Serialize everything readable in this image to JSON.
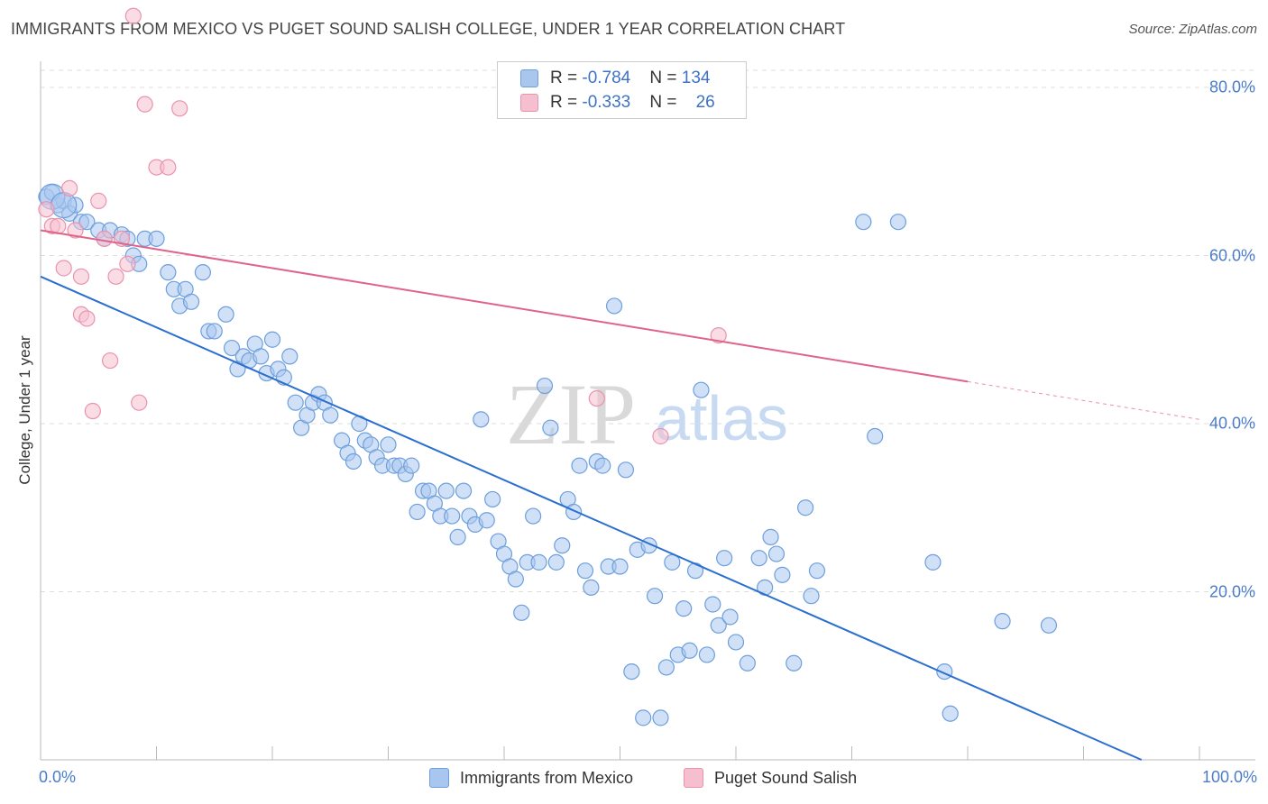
{
  "chart_data": {
    "type": "scatter",
    "title": "IMMIGRANTS FROM MEXICO VS PUGET SOUND SALISH COLLEGE, UNDER 1 YEAR CORRELATION CHART",
    "source": "Source: ZipAtlas.com",
    "xlabel": "",
    "ylabel": "College, Under 1 year",
    "xlim": [
      0,
      100
    ],
    "ylim": [
      0,
      80
    ],
    "x_tick_labels": [
      "0.0%",
      "100.0%"
    ],
    "y_tick_values": [
      20,
      40,
      60,
      80
    ],
    "y_tick_labels": [
      "20.0%",
      "40.0%",
      "60.0%",
      "80.0%"
    ],
    "watermark": {
      "part1": "ZIP",
      "part2": "atlas"
    },
    "stats": [
      {
        "r_label": "R = ",
        "r": "-0.784",
        "n_label": "N = ",
        "n": "134"
      },
      {
        "r_label": "R = ",
        "r": "-0.333",
        "n_label": "N = ",
        "n": "26"
      }
    ],
    "series": [
      {
        "name": "Immigrants from Mexico",
        "color": "#a9c6ef",
        "stroke": "#6d9fdc",
        "line_color": "#2a6fd0",
        "trend": {
          "x0": 0,
          "y0": 57.5,
          "x1": 95,
          "y1": 0,
          "dash_from": 95
        },
        "points": [
          [
            0.5,
            67
          ],
          [
            1,
            67.5
          ],
          [
            1.5,
            66
          ],
          [
            2,
            66.5
          ],
          [
            2.5,
            65
          ],
          [
            3,
            66
          ],
          [
            3.5,
            64
          ],
          [
            4,
            64
          ],
          [
            5,
            63
          ],
          [
            5.5,
            62
          ],
          [
            6,
            63
          ],
          [
            7,
            62.5
          ],
          [
            8,
            60
          ],
          [
            7.5,
            62
          ],
          [
            8.5,
            59
          ],
          [
            9,
            62
          ],
          [
            10,
            62
          ],
          [
            11,
            58
          ],
          [
            11.5,
            56
          ],
          [
            12,
            54
          ],
          [
            12.5,
            56
          ],
          [
            13,
            54.5
          ],
          [
            14,
            58
          ],
          [
            14.5,
            51
          ],
          [
            15,
            51
          ],
          [
            16,
            53
          ],
          [
            16.5,
            49
          ],
          [
            17,
            46.5
          ],
          [
            17.5,
            48
          ],
          [
            18,
            47.5
          ],
          [
            18.5,
            49.5
          ],
          [
            19,
            48
          ],
          [
            19.5,
            46
          ],
          [
            20,
            50
          ],
          [
            20.5,
            46.5
          ],
          [
            21,
            45.5
          ],
          [
            21.5,
            48
          ],
          [
            22,
            42.5
          ],
          [
            22.5,
            39.5
          ],
          [
            23,
            41
          ],
          [
            23.5,
            42.5
          ],
          [
            24,
            43.5
          ],
          [
            24.5,
            42.5
          ],
          [
            25,
            41
          ],
          [
            26,
            38
          ],
          [
            26.5,
            36.5
          ],
          [
            27,
            35.5
          ],
          [
            27.5,
            40
          ],
          [
            28,
            38
          ],
          [
            28.5,
            37.5
          ],
          [
            29,
            36
          ],
          [
            29.5,
            35
          ],
          [
            30,
            37.5
          ],
          [
            30.5,
            35
          ],
          [
            31,
            35
          ],
          [
            31.5,
            34
          ],
          [
            32,
            35
          ],
          [
            32.5,
            29.5
          ],
          [
            33,
            32
          ],
          [
            33.5,
            32
          ],
          [
            34,
            30.5
          ],
          [
            34.5,
            29
          ],
          [
            35,
            32
          ],
          [
            35.5,
            29
          ],
          [
            36,
            26.5
          ],
          [
            36.5,
            32
          ],
          [
            37,
            29
          ],
          [
            37.5,
            28
          ],
          [
            38,
            40.5
          ],
          [
            38.5,
            28.5
          ],
          [
            39,
            31
          ],
          [
            39.5,
            26
          ],
          [
            40,
            24.5
          ],
          [
            40.5,
            23
          ],
          [
            41,
            21.5
          ],
          [
            41.5,
            17.5
          ],
          [
            42,
            23.5
          ],
          [
            42.5,
            29
          ],
          [
            43,
            23.5
          ],
          [
            43.5,
            44.5
          ],
          [
            44,
            39.5
          ],
          [
            44.5,
            23.5
          ],
          [
            45,
            25.5
          ],
          [
            45.5,
            31
          ],
          [
            46,
            29.5
          ],
          [
            46.5,
            35
          ],
          [
            47,
            22.5
          ],
          [
            47.5,
            20.5
          ],
          [
            48,
            35.5
          ],
          [
            48.5,
            35
          ],
          [
            49,
            23
          ],
          [
            49.5,
            54
          ],
          [
            50,
            23
          ],
          [
            50.5,
            34.5
          ],
          [
            51,
            10.5
          ],
          [
            51.5,
            25
          ],
          [
            52,
            5
          ],
          [
            52.5,
            25.5
          ],
          [
            53,
            19.5
          ],
          [
            53.5,
            5
          ],
          [
            54,
            11
          ],
          [
            54.5,
            23.5
          ],
          [
            55,
            12.5
          ],
          [
            55.5,
            18
          ],
          [
            56,
            13
          ],
          [
            56.5,
            22.5
          ],
          [
            57,
            44
          ],
          [
            57.5,
            12.5
          ],
          [
            58,
            18.5
          ],
          [
            58.5,
            16
          ],
          [
            59,
            24
          ],
          [
            59.5,
            17
          ],
          [
            60,
            14
          ],
          [
            61,
            11.5
          ],
          [
            62,
            24
          ],
          [
            62.5,
            20.5
          ],
          [
            63,
            26.5
          ],
          [
            63.5,
            24.5
          ],
          [
            64,
            22
          ],
          [
            65,
            11.5
          ],
          [
            66,
            30
          ],
          [
            66.5,
            19.5
          ],
          [
            67,
            22.5
          ],
          [
            71,
            64
          ],
          [
            72,
            38.5
          ],
          [
            74,
            64
          ],
          [
            77,
            23.5
          ],
          [
            78,
            10.5
          ],
          [
            78.5,
            5.5
          ],
          [
            83,
            16.5
          ],
          [
            87,
            16
          ]
        ],
        "big_points": [
          [
            1,
            67
          ],
          [
            2,
            66
          ]
        ]
      },
      {
        "name": "Puget Sound Salish",
        "color": "#f6bfd0",
        "stroke": "#ea93ae",
        "line_color": "#e0638a",
        "trend": {
          "x0": 0,
          "y0": 63,
          "x1": 100,
          "y1": 40.5,
          "dash_from": 80
        },
        "points": [
          [
            0.5,
            65.5
          ],
          [
            1,
            63.5
          ],
          [
            1.5,
            63.5
          ],
          [
            2,
            58.5
          ],
          [
            2.5,
            68
          ],
          [
            3,
            63
          ],
          [
            3.5,
            53
          ],
          [
            3.5,
            57.5
          ],
          [
            4,
            52.5
          ],
          [
            4.5,
            41.5
          ],
          [
            5,
            66.5
          ],
          [
            5.5,
            62
          ],
          [
            6,
            47.5
          ],
          [
            6.5,
            57.5
          ],
          [
            7,
            62
          ],
          [
            7.5,
            59
          ],
          [
            8,
            88.5
          ],
          [
            8.5,
            42.5
          ],
          [
            9,
            78
          ],
          [
            10,
            70.5
          ],
          [
            11,
            70.5
          ],
          [
            12,
            77.5
          ],
          [
            48,
            43
          ],
          [
            53.5,
            38.5
          ],
          [
            58.5,
            50.5
          ]
        ]
      }
    ]
  }
}
